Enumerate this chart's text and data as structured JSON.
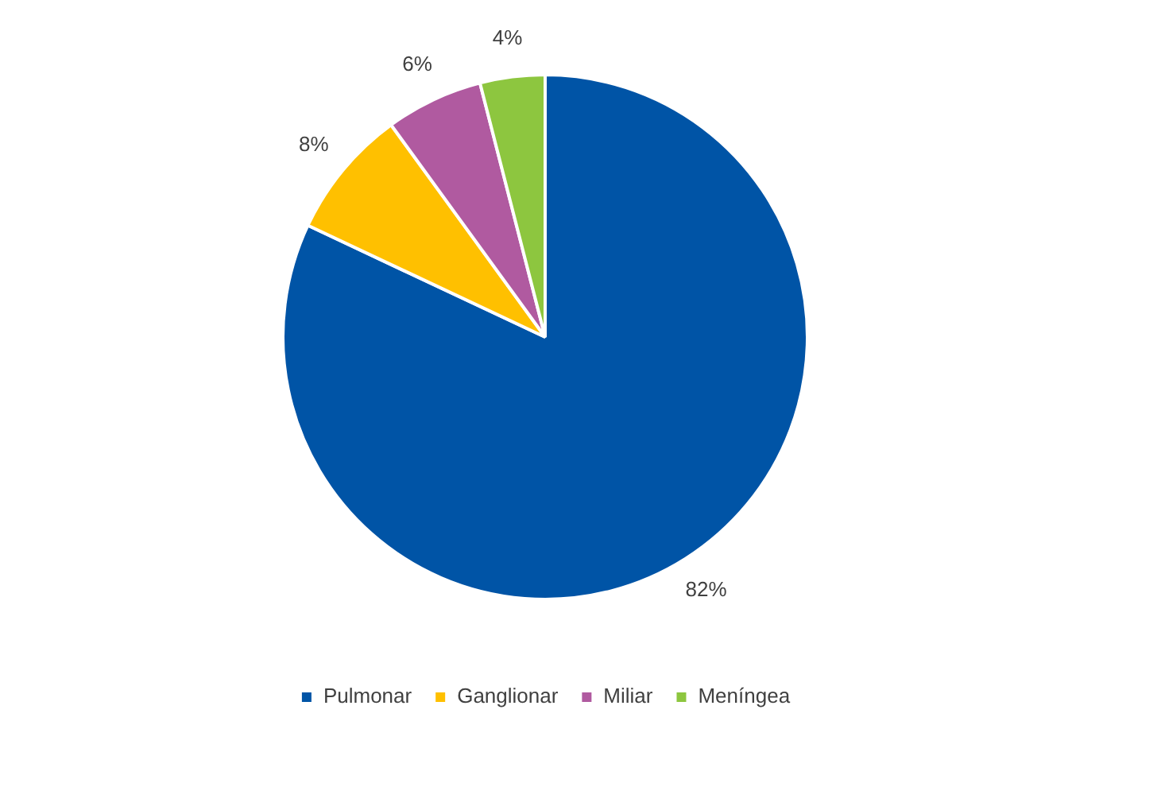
{
  "chart_data": {
    "type": "pie",
    "categories": [
      "Pulmonar",
      "Ganglionar",
      "Miliar",
      "Meníngea"
    ],
    "values": [
      82,
      8,
      6,
      4
    ],
    "colors": [
      "#0054a6",
      "#ffc000",
      "#b05aa0",
      "#8dc63f"
    ],
    "value_labels": [
      "82%",
      "8%",
      "6%",
      "4%"
    ],
    "legend": "bottom"
  }
}
